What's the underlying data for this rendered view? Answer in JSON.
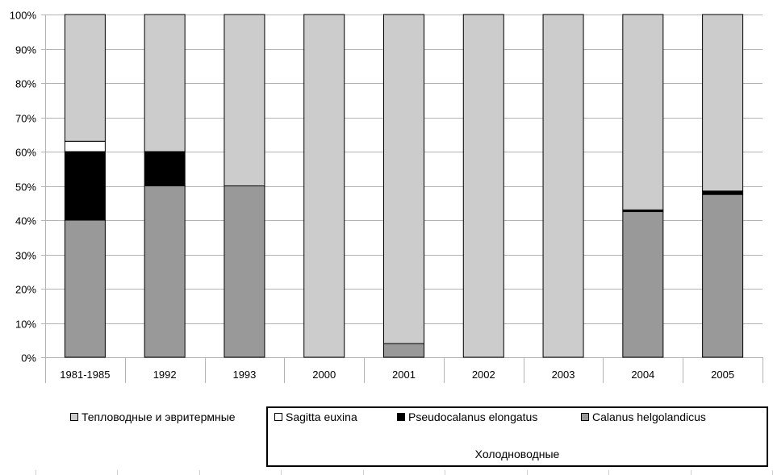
{
  "chart_data": {
    "type": "bar",
    "stacked": true,
    "percent": true,
    "categories": [
      "1981-1985",
      "1992",
      "1993",
      "2000",
      "2001",
      "2002",
      "2003",
      "2004",
      "2005"
    ],
    "series": [
      {
        "name": "Calanus helgolandicus",
        "color": "#999999",
        "values": [
          40,
          50,
          50,
          0,
          4,
          0,
          0,
          42.5,
          47.5
        ]
      },
      {
        "name": "Pseudocalanus elongatus",
        "color": "#000000",
        "values": [
          20,
          10,
          0,
          0,
          0,
          0,
          0,
          0.5,
          1
        ]
      },
      {
        "name": "Sagitta euxina",
        "color": "#ffffff",
        "values": [
          3,
          0,
          0,
          0,
          0,
          0,
          0,
          0,
          0
        ]
      },
      {
        "name": "Тепловодные и эвритермные",
        "color": "#cccccc",
        "values": [
          37,
          40,
          50,
          100,
          96,
          100,
          100,
          57,
          51.5
        ]
      }
    ],
    "yticks": [
      "0%",
      "10%",
      "20%",
      "30%",
      "40%",
      "50%",
      "60%",
      "70%",
      "80%",
      "90%",
      "100%"
    ],
    "ylim": [
      0,
      100
    ],
    "grid": true,
    "legend_position": "bottom",
    "legend_group_label": "Холодноводные"
  },
  "legend": {
    "warm": "Тепловодные и эвритермные",
    "sagitta": "Sagitta euxina",
    "pseudo": "Pseudocalanus elongatus",
    "calanus": "Calanus helgolandicus",
    "cold_group": "Холодноводные"
  }
}
